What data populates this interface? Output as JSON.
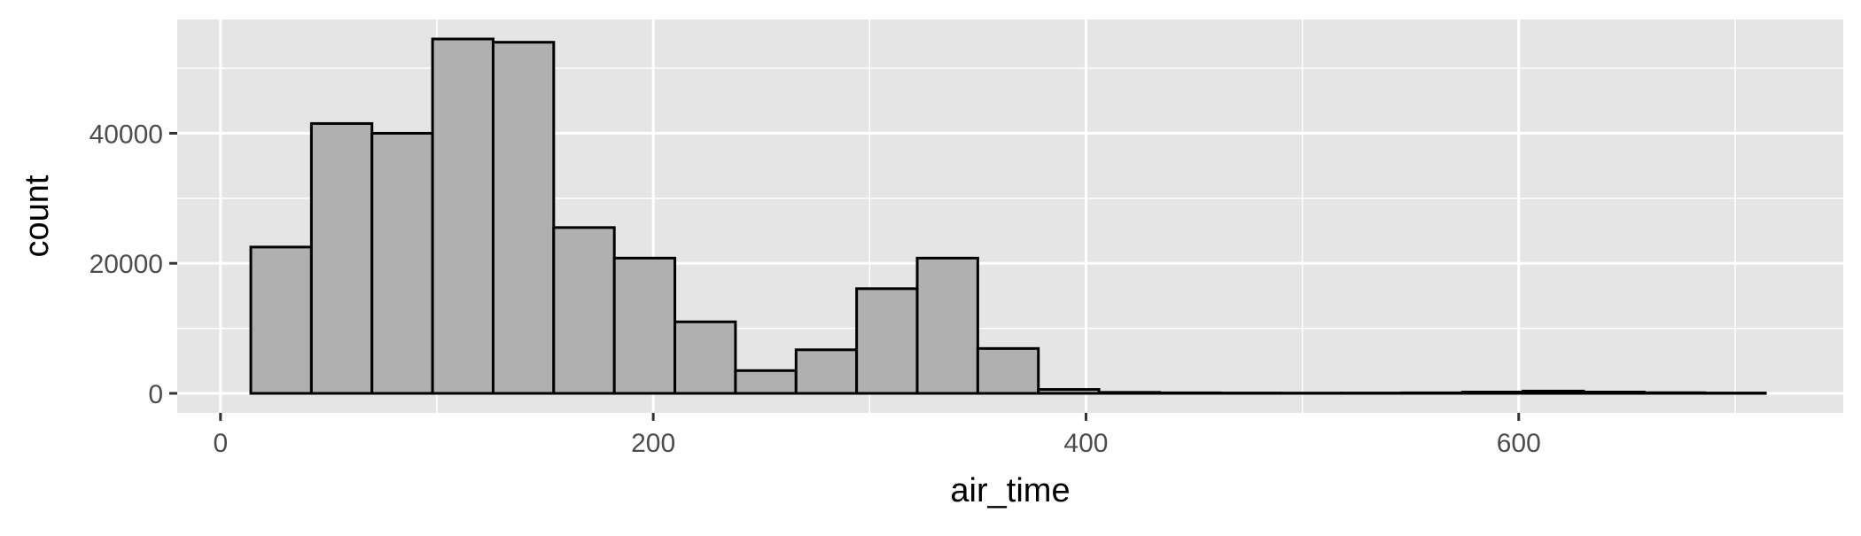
{
  "chart_data": {
    "type": "bar",
    "xlabel": "air_time",
    "ylabel": "count",
    "xlim": [
      -20,
      750
    ],
    "ylim": [
      -3000,
      57500
    ],
    "x_ticks": [
      0,
      200,
      400,
      600
    ],
    "y_ticks": [
      0,
      20000,
      40000
    ],
    "x_minor_ticks": [
      100,
      300,
      500,
      700
    ],
    "y_minor_ticks": [
      10000,
      30000,
      50000
    ],
    "grid": true,
    "colors": {
      "panel": "#e5e5e5",
      "grid": "#ffffff",
      "bar_fill": "#b0b0b0",
      "bar_edge": "#000000"
    },
    "bins": [
      {
        "start": 14,
        "end": 42,
        "count": 22500
      },
      {
        "start": 42,
        "end": 70,
        "count": 41500
      },
      {
        "start": 70,
        "end": 98,
        "count": 40000
      },
      {
        "start": 98,
        "end": 126,
        "count": 54500
      },
      {
        "start": 126,
        "end": 154,
        "count": 54000
      },
      {
        "start": 154,
        "end": 182,
        "count": 25500
      },
      {
        "start": 182,
        "end": 210,
        "count": 20800
      },
      {
        "start": 210,
        "end": 238,
        "count": 11000
      },
      {
        "start": 238,
        "end": 266,
        "count": 3500
      },
      {
        "start": 266,
        "end": 294,
        "count": 6700
      },
      {
        "start": 294,
        "end": 322,
        "count": 16100
      },
      {
        "start": 322,
        "end": 350,
        "count": 20800
      },
      {
        "start": 350,
        "end": 378,
        "count": 6900
      },
      {
        "start": 378,
        "end": 406,
        "count": 600
      },
      {
        "start": 406,
        "end": 434,
        "count": 150
      },
      {
        "start": 434,
        "end": 462,
        "count": 80
      },
      {
        "start": 462,
        "end": 490,
        "count": 50
      },
      {
        "start": 490,
        "end": 518,
        "count": 40
      },
      {
        "start": 518,
        "end": 546,
        "count": 50
      },
      {
        "start": 546,
        "end": 574,
        "count": 80
      },
      {
        "start": 574,
        "end": 602,
        "count": 200
      },
      {
        "start": 602,
        "end": 630,
        "count": 350
      },
      {
        "start": 630,
        "end": 658,
        "count": 200
      },
      {
        "start": 658,
        "end": 686,
        "count": 100
      },
      {
        "start": 686,
        "end": 714,
        "count": 50
      }
    ]
  }
}
